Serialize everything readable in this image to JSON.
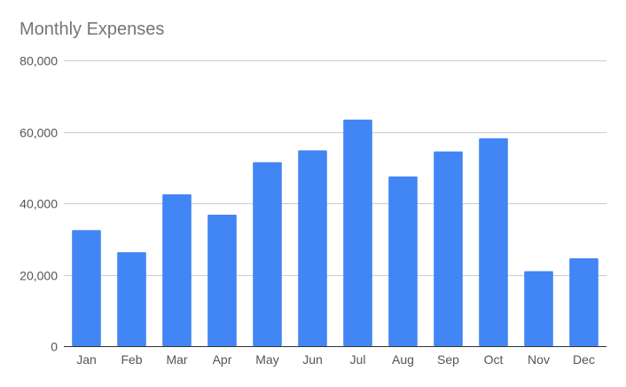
{
  "chart_data": {
    "type": "bar",
    "title": "Monthly Expenses",
    "xlabel": "",
    "ylabel": "",
    "categories": [
      "Jan",
      "Feb",
      "Mar",
      "Apr",
      "May",
      "Jun",
      "Jul",
      "Aug",
      "Sep",
      "Oct",
      "Nov",
      "Dec"
    ],
    "values": [
      32500,
      26300,
      42500,
      36800,
      51500,
      54800,
      63400,
      47500,
      54500,
      58200,
      21000,
      24600
    ],
    "ylim": [
      0,
      80000
    ],
    "yticks": [
      0,
      20000,
      40000,
      60000,
      80000
    ],
    "ytick_labels": [
      "0",
      "20,000",
      "40,000",
      "60,000",
      "80,000"
    ],
    "grid": true,
    "legend": "none",
    "colors": {
      "bar": "#4285f4",
      "grid": "#cccccc",
      "axis": "#333333",
      "title": "#757575",
      "ticks": "#555555"
    }
  }
}
